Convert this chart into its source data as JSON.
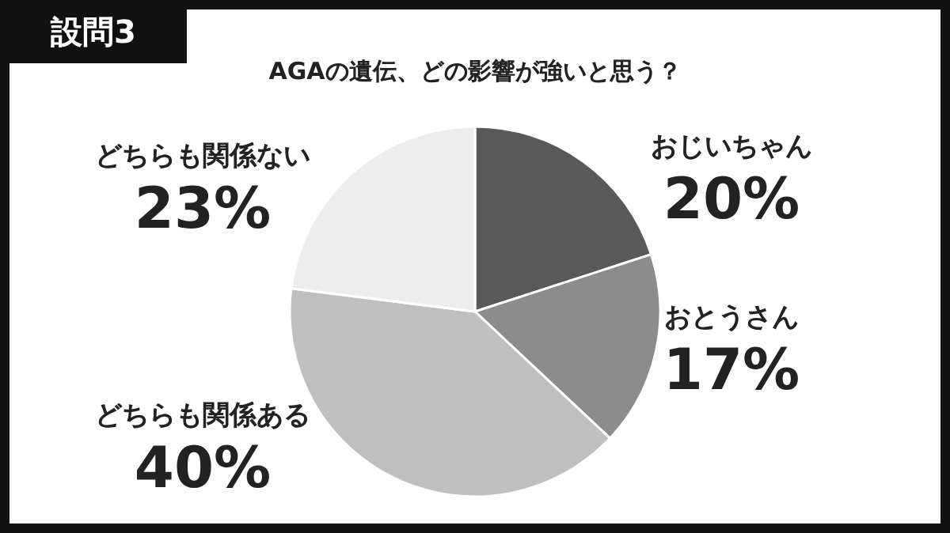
{
  "chart_data": {
    "type": "pie",
    "title": "AGAの遺伝、どの影響が強いと思う？",
    "categories": [
      "おじいちゃん",
      "おとうさん",
      "どちらも関係ある",
      "どちらも関係ない"
    ],
    "values": [
      20,
      17,
      40,
      23
    ],
    "value_labels": [
      "20%",
      "17%",
      "40%",
      "23%"
    ],
    "colors": [
      "#595959",
      "#8c8c8c",
      "#bfbfbf",
      "#ededed"
    ],
    "annotations": [
      "設問3"
    ]
  }
}
